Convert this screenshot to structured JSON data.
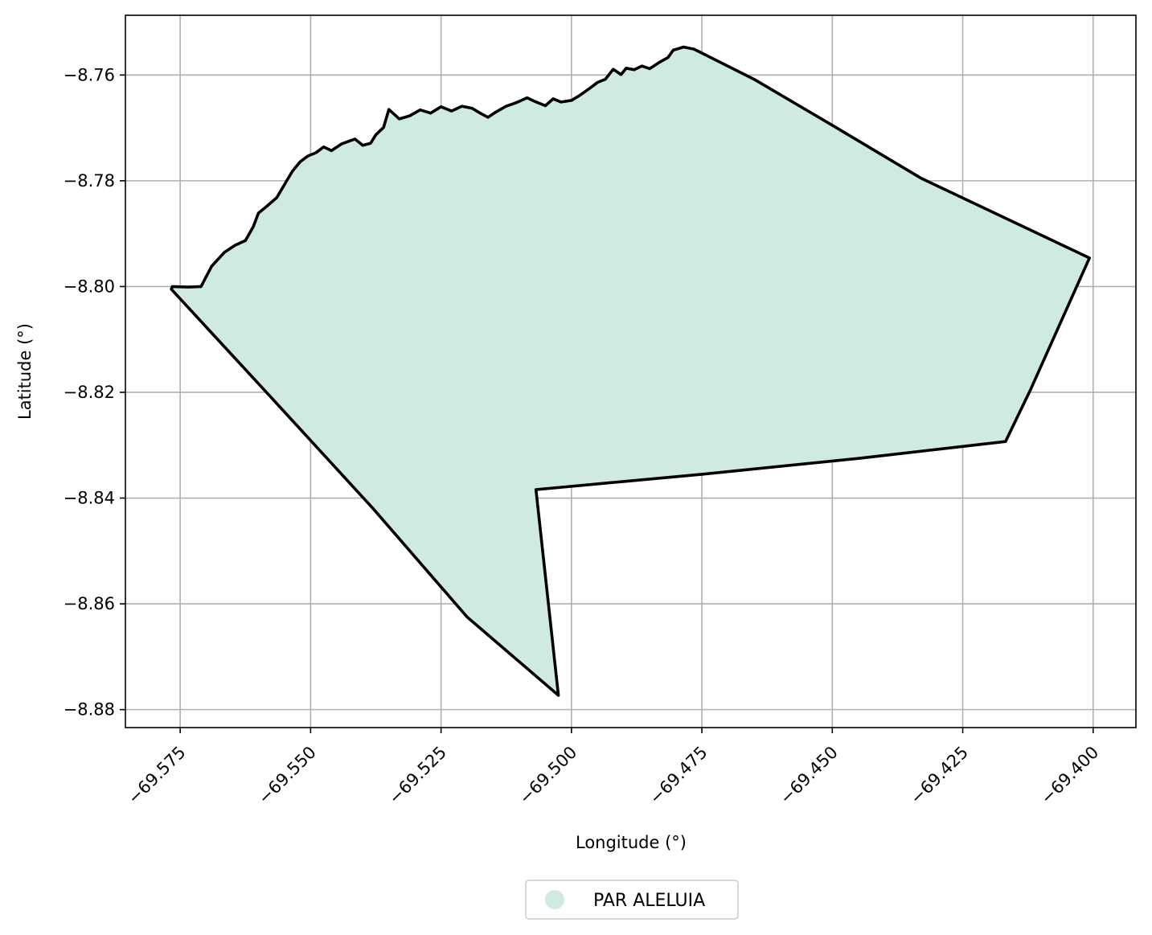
{
  "chart_data": {
    "type": "map",
    "xlabel": "Longitude (°)",
    "ylabel": "Latitude (°)",
    "xlim": [
      -69.5855,
      -69.3918
    ],
    "ylim": [
      -8.8834,
      -8.7487
    ],
    "x_ticks": [
      -69.575,
      -69.55,
      -69.525,
      -69.5,
      -69.475,
      -69.45,
      -69.425,
      -69.4
    ],
    "x_tick_labels": [
      "−69.575",
      "−69.550",
      "−69.525",
      "−69.500",
      "−69.475",
      "−69.450",
      "−69.425",
      "−69.400"
    ],
    "y_ticks": [
      -8.76,
      -8.78,
      -8.8,
      -8.82,
      -8.84,
      -8.86,
      -8.88
    ],
    "y_tick_labels": [
      "−8.76",
      "−8.78",
      "−8.80",
      "−8.82",
      "−8.84",
      "−8.86",
      "−8.88"
    ],
    "grid": true,
    "legend_position": "bottom-center",
    "series": [
      {
        "name": "PAR ALELUIA",
        "fill_color": "#cfebdf",
        "edge_color": "#000000",
        "polygon": [
          [
            -69.4765,
            -8.7551
          ],
          [
            -69.4785,
            -8.7547
          ],
          [
            -69.4805,
            -8.7553
          ],
          [
            -69.4815,
            -8.7567
          ],
          [
            -69.483,
            -8.7575
          ],
          [
            -69.485,
            -8.7588
          ],
          [
            -69.4865,
            -8.7583
          ],
          [
            -69.488,
            -8.759
          ],
          [
            -69.4895,
            -8.7587
          ],
          [
            -69.4905,
            -8.7599
          ],
          [
            -69.492,
            -8.7589
          ],
          [
            -69.4935,
            -8.7608
          ],
          [
            -69.495,
            -8.7614
          ],
          [
            -69.4965,
            -8.7625
          ],
          [
            -69.4985,
            -8.7639
          ],
          [
            -69.5,
            -8.7648
          ],
          [
            -69.502,
            -8.7651
          ],
          [
            -69.5035,
            -8.7645
          ],
          [
            -69.505,
            -8.7658
          ],
          [
            -69.507,
            -8.765
          ],
          [
            -69.5085,
            -8.7643
          ],
          [
            -69.5105,
            -8.7652
          ],
          [
            -69.5125,
            -8.7659
          ],
          [
            -69.5145,
            -8.767
          ],
          [
            -69.516,
            -8.768
          ],
          [
            -69.5175,
            -8.7672
          ],
          [
            -69.519,
            -8.7663
          ],
          [
            -69.521,
            -8.7659
          ],
          [
            -69.523,
            -8.7668
          ],
          [
            -69.525,
            -8.766
          ],
          [
            -69.527,
            -8.7672
          ],
          [
            -69.529,
            -8.7666
          ],
          [
            -69.531,
            -8.7677
          ],
          [
            -69.533,
            -8.7683
          ],
          [
            -69.535,
            -8.7665
          ],
          [
            -69.536,
            -8.7699
          ],
          [
            -69.5375,
            -8.7713
          ],
          [
            -69.5385,
            -8.7729
          ],
          [
            -69.54,
            -8.7733
          ],
          [
            -69.5415,
            -8.7721
          ],
          [
            -69.544,
            -8.773
          ],
          [
            -69.546,
            -8.7743
          ],
          [
            -69.5475,
            -8.7736
          ],
          [
            -69.549,
            -8.7747
          ],
          [
            -69.5505,
            -8.7753
          ],
          [
            -69.552,
            -8.7764
          ],
          [
            -69.5535,
            -8.7782
          ],
          [
            -69.555,
            -8.7807
          ],
          [
            -69.5565,
            -8.7832
          ],
          [
            -69.5585,
            -8.7849
          ],
          [
            -69.56,
            -8.7861
          ],
          [
            -69.561,
            -8.7887
          ],
          [
            -69.5625,
            -8.7913
          ],
          [
            -69.5645,
            -8.7922
          ],
          [
            -69.5665,
            -8.7935
          ],
          [
            -69.569,
            -8.7962
          ],
          [
            -69.571,
            -8.8
          ],
          [
            -69.5735,
            -8.8001
          ],
          [
            -69.5765,
            -8.8
          ],
          [
            -69.5767,
            -8.8005
          ],
          [
            -69.558,
            -8.8205
          ],
          [
            -69.538,
            -8.842
          ],
          [
            -69.52,
            -8.8625
          ],
          [
            -69.5025,
            -8.8773
          ],
          [
            -69.5068,
            -8.8384
          ],
          [
            -69.475,
            -8.8355
          ],
          [
            -69.445,
            -8.8325
          ],
          [
            -69.4168,
            -8.8293
          ],
          [
            -69.412,
            -8.8195
          ],
          [
            -69.4007,
            -8.7946
          ],
          [
            -69.433,
            -8.7795
          ],
          [
            -69.45,
            -8.7695
          ],
          [
            -69.465,
            -8.7608
          ]
        ]
      }
    ]
  }
}
